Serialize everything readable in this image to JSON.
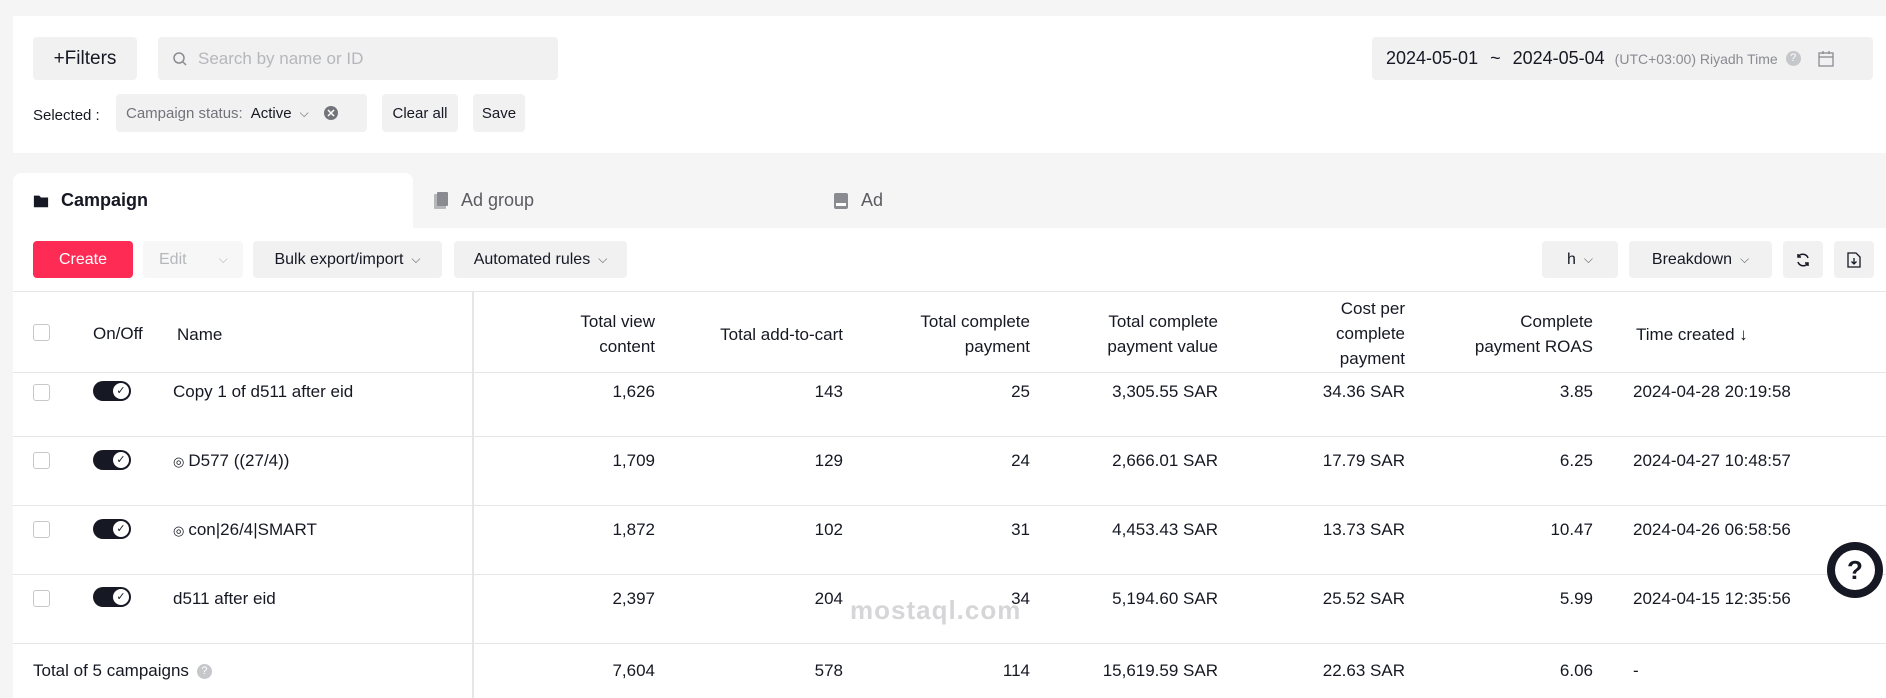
{
  "toolbar": {
    "filters_label": "+Filters",
    "search_placeholder": "Search by name or ID",
    "date_start": "2024-05-01",
    "date_sep": "~",
    "date_end": "2024-05-04",
    "timezone": "(UTC+03:00) Riyadh Time"
  },
  "selected": {
    "label": "Selected :",
    "chip_key": "Campaign status:",
    "chip_value": "Active",
    "clear_all": "Clear all",
    "save": "Save"
  },
  "tabs": [
    {
      "label": "Campaign"
    },
    {
      "label": "Ad group"
    },
    {
      "label": "Ad"
    }
  ],
  "actions": {
    "create": "Create",
    "edit": "Edit",
    "bulk": "Bulk export/import",
    "automated": "Automated rules",
    "h": "h",
    "breakdown": "Breakdown"
  },
  "table": {
    "headers": {
      "onoff": "On/Off",
      "name": "Name",
      "view": [
        "Total view",
        "content"
      ],
      "cart": "Total add-to-cart",
      "payment": [
        "Total complete",
        "payment"
      ],
      "value": [
        "Total complete",
        "payment value"
      ],
      "cost": [
        "Cost per",
        "complete",
        "payment"
      ],
      "roas": [
        "Complete",
        "payment ROAS"
      ],
      "time": "Time created ↓"
    },
    "rows": [
      {
        "name": "Copy 1 of d511 after eid",
        "view": "1,626",
        "cart": "143",
        "payment": "25",
        "value": "3,305.55 SAR",
        "cost": "34.36 SAR",
        "roas": "3.85",
        "time": "2024-04-28 20:19:58"
      },
      {
        "name": "D577 ((27/4))",
        "view": "1,709",
        "cart": "129",
        "payment": "24",
        "value": "2,666.01 SAR",
        "cost": "17.79 SAR",
        "roas": "6.25",
        "time": "2024-04-27 10:48:57"
      },
      {
        "name": "con|26/4|SMART",
        "view": "1,872",
        "cart": "102",
        "payment": "31",
        "value": "4,453.43 SAR",
        "cost": "13.73 SAR",
        "roas": "10.47",
        "time": "2024-04-26 06:58:56"
      },
      {
        "name": "d511 after eid",
        "view": "2,397",
        "cart": "204",
        "payment": "34",
        "value": "5,194.60 SAR",
        "cost": "25.52 SAR",
        "roas": "5.99",
        "time": "2024-04-15 12:35:56"
      }
    ],
    "total": {
      "label": "Total of 5 campaigns",
      "view": "7,604",
      "cart": "578",
      "payment": "114",
      "value": "15,619.59 SAR",
      "cost": "22.63 SAR",
      "roas": "6.06",
      "time": "-"
    }
  },
  "watermark": "mostaql.com",
  "colors": {
    "accent": "#fe2c55",
    "text": "#161823",
    "muted": "#73747b"
  }
}
